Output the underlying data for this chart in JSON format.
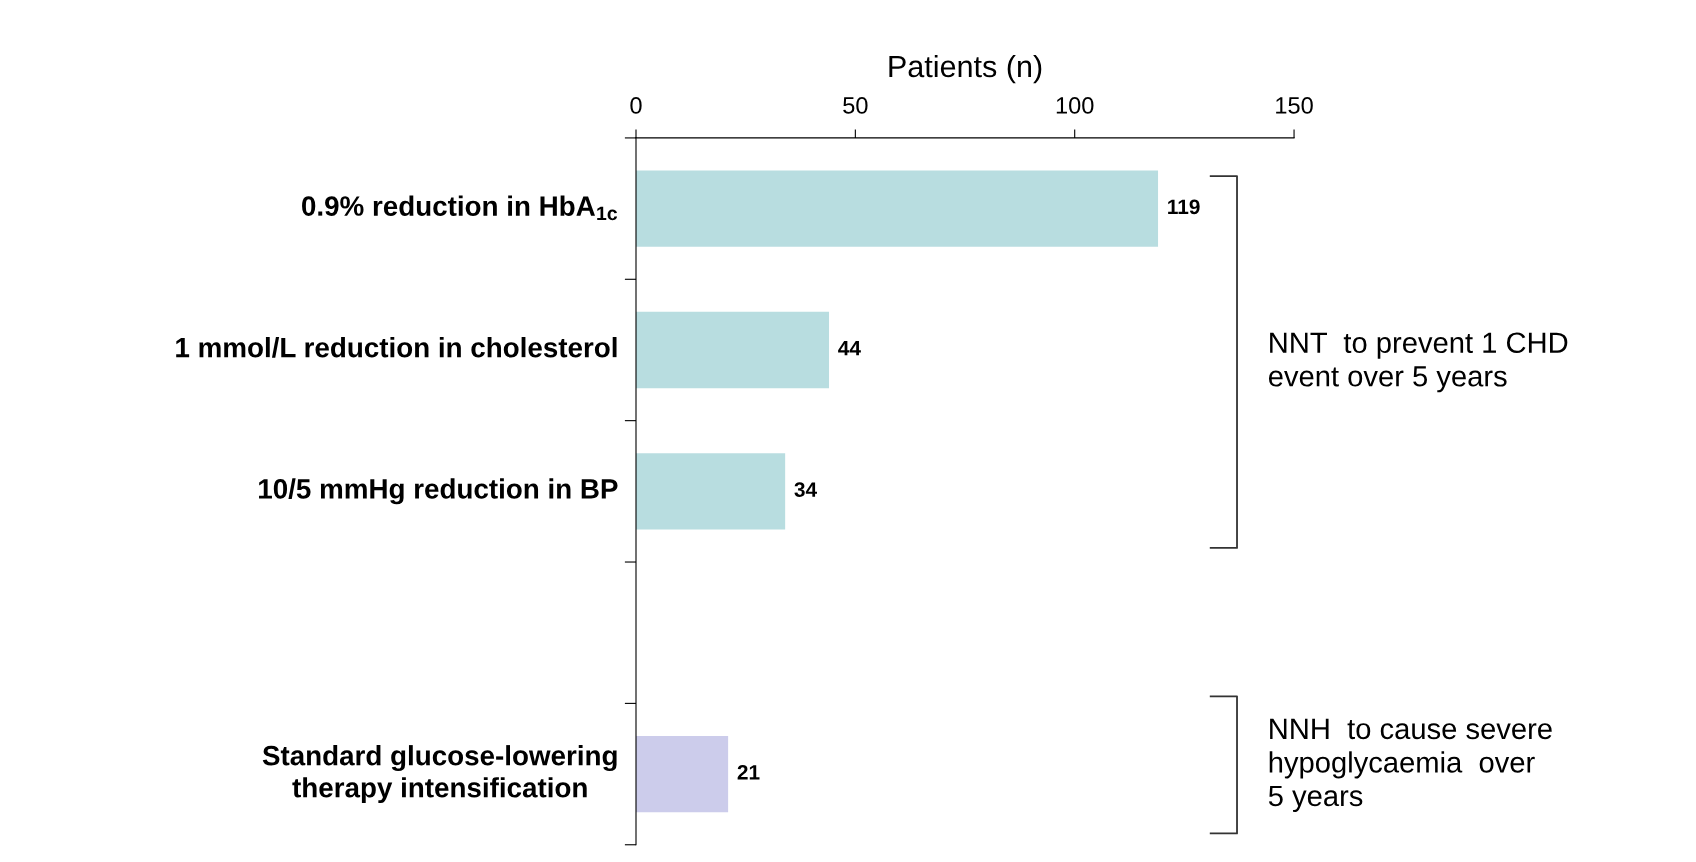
{
  "chart_data": {
    "type": "bar",
    "orientation": "horizontal",
    "xlabel": "Patients (n)",
    "categories": [
      "0.9% reduction in HbA$_{1c}$",
      "1 mmol/L reduction in cholesterol",
      "10/5 mmHg reduction in BP",
      null,
      "Standard glucose-lowering\ntherapy intensification"
    ],
    "values": [
      119,
      44,
      34,
      null,
      21
    ],
    "colors": [
      "#b8dde0",
      "#b8dde0",
      "#b8dde0",
      "#b8dde0",
      "#cccceb"
    ],
    "xlim": [
      0,
      150
    ],
    "xticks": [
      0,
      50,
      100,
      150
    ],
    "data_labels": true,
    "grid": false,
    "legend": false,
    "annotations": [
      "NNT  to prevent 1 CHD\nevent over 5 years",
      "NNH  to cause severe\nhypoglycaemia  over\n5 years"
    ]
  }
}
